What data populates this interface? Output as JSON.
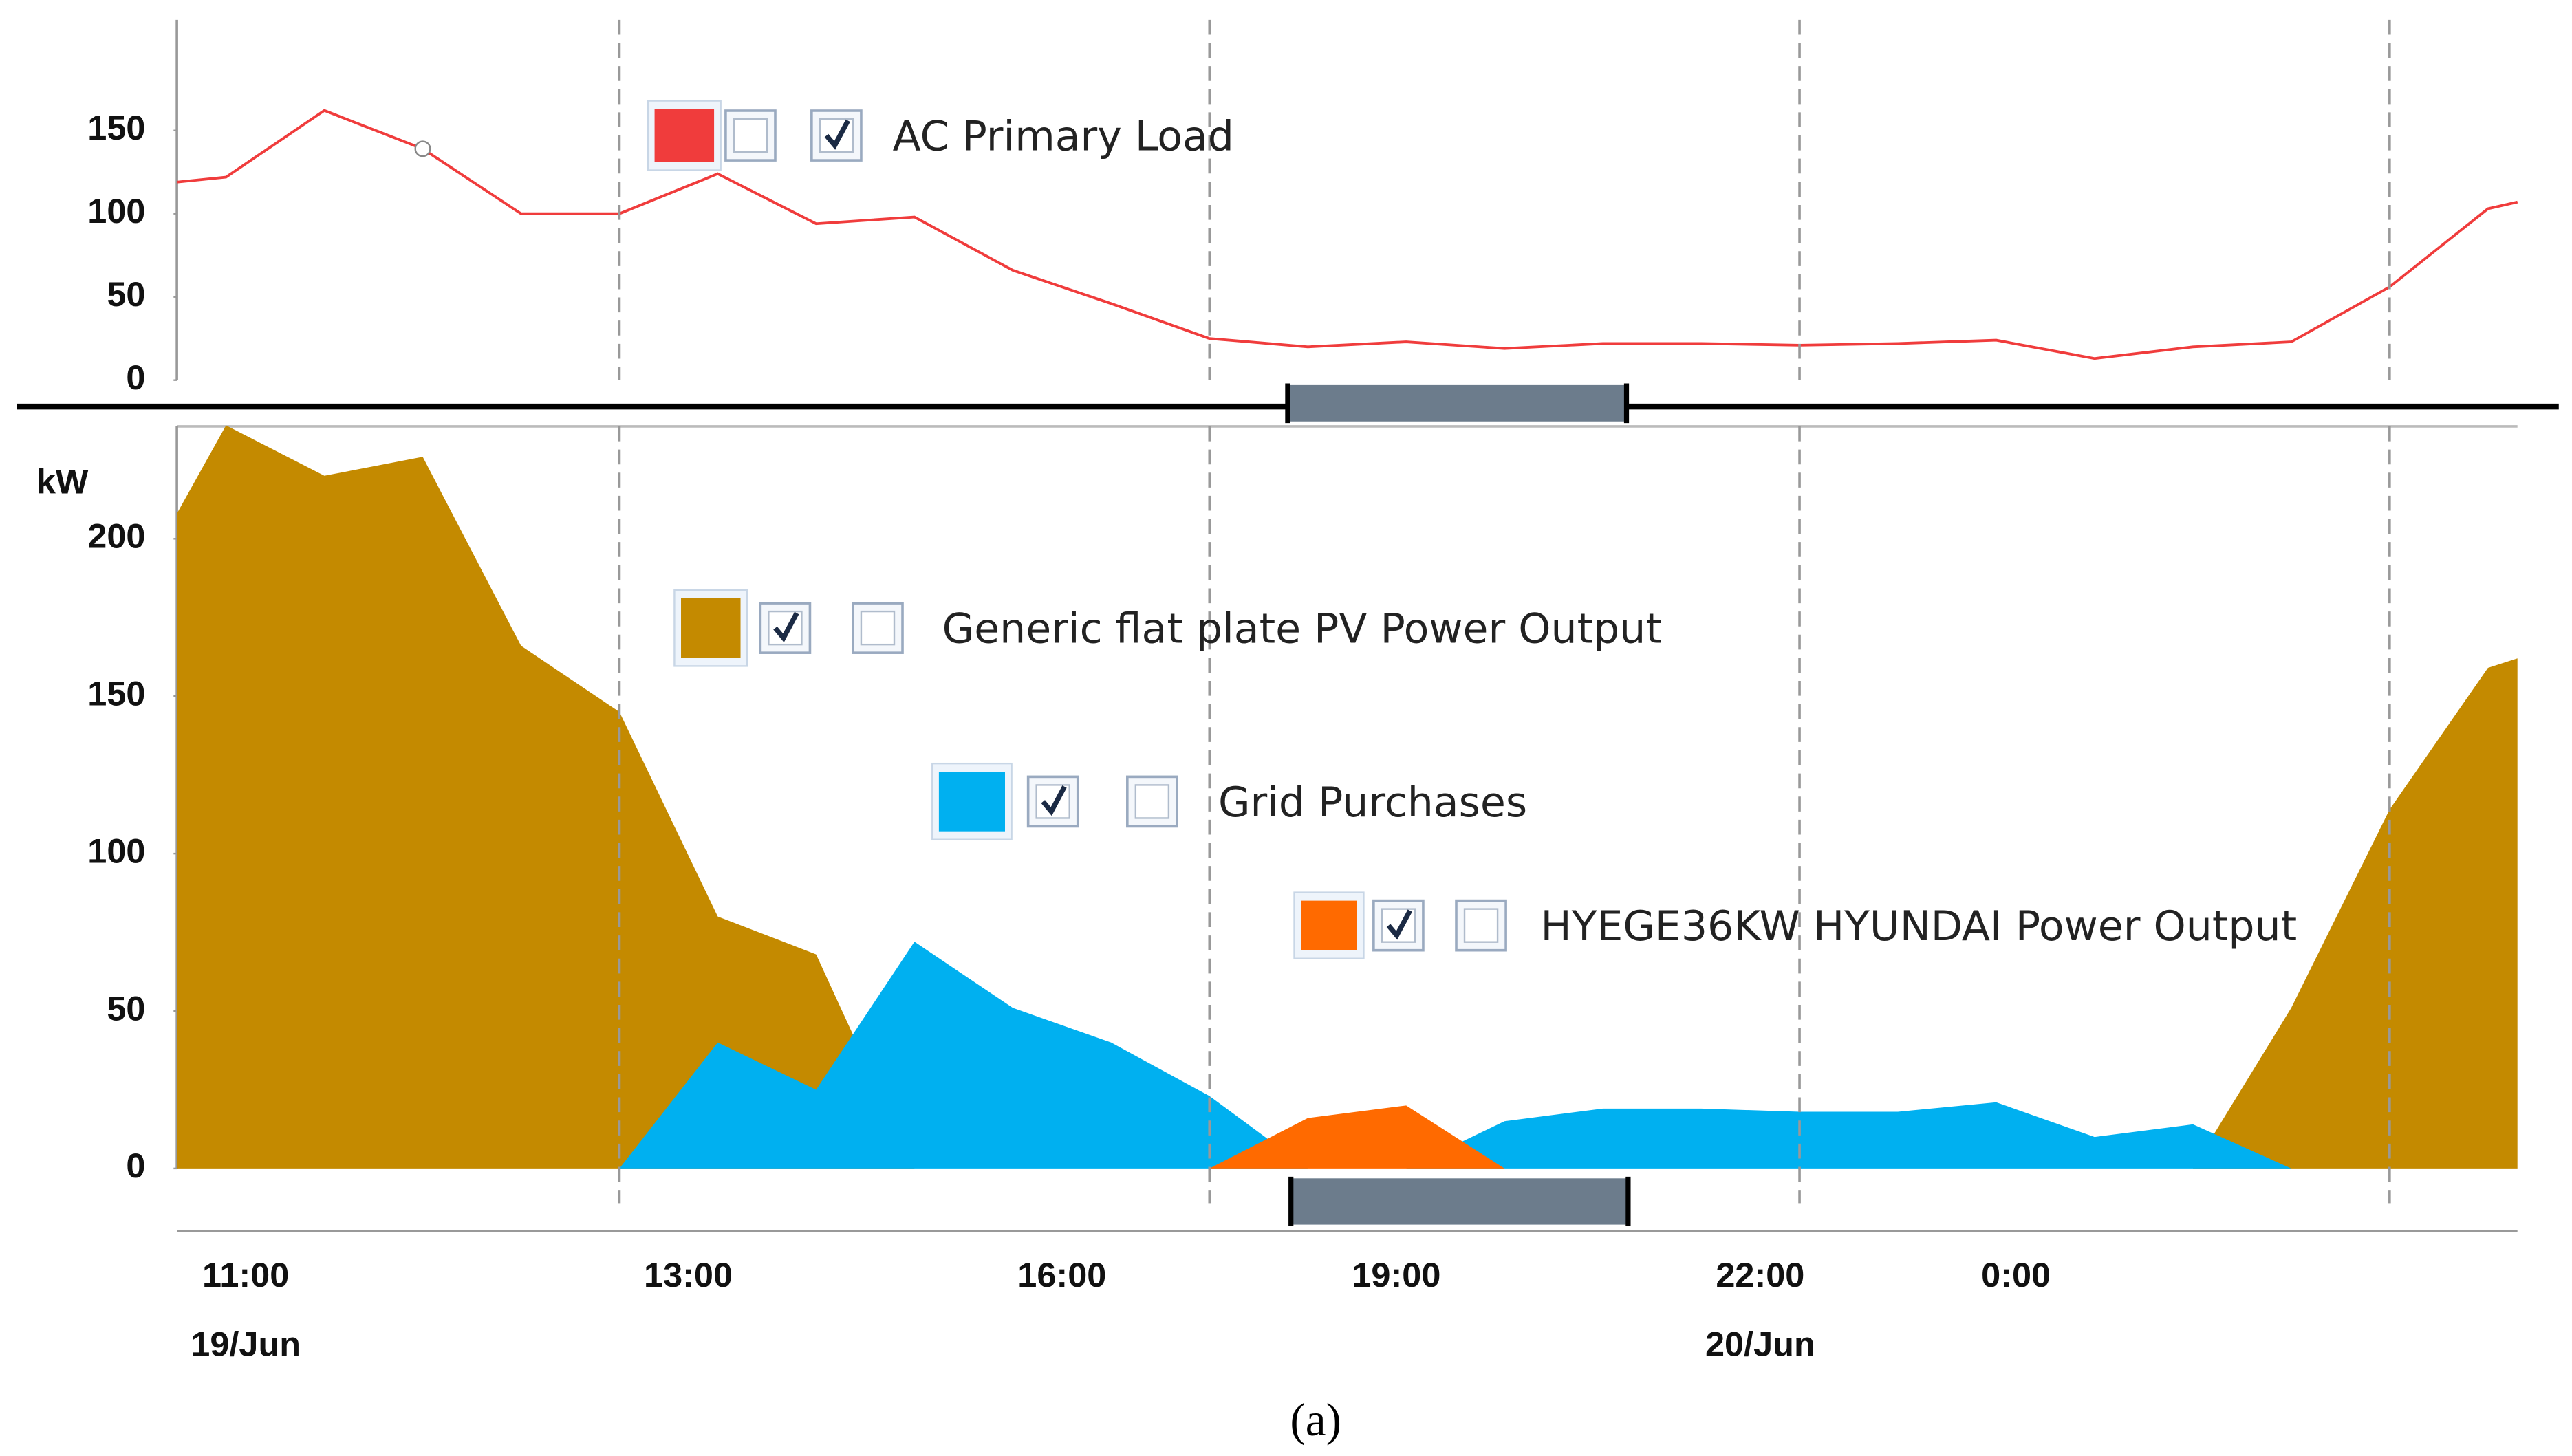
{
  "caption": "(a)",
  "chart_data": [
    {
      "type": "line",
      "x": [
        0.5,
        1,
        2,
        3,
        4,
        5,
        6,
        7,
        8,
        9,
        10,
        11,
        12,
        13,
        14,
        15,
        16,
        17,
        18,
        19,
        20,
        21,
        22,
        23,
        24,
        24.3
      ],
      "series": [
        {
          "name": "AC Primary Load",
          "color": "#f03c3c",
          "values": [
            119,
            122,
            162,
            139,
            100,
            100,
            124,
            94,
            98,
            66,
            46,
            25,
            20,
            23,
            19,
            22,
            22,
            21,
            22,
            24,
            13,
            20,
            23,
            56,
            103,
            107
          ]
        }
      ],
      "highlight_point": 3,
      "xlim": [
        0.5,
        24.3
      ],
      "ylim": [
        0,
        216
      ],
      "yticks": [
        0,
        50,
        100,
        150
      ],
      "vlines": [
        5,
        11,
        17,
        23
      ]
    },
    {
      "type": "area",
      "ylabel": "kW",
      "x": [
        0.5,
        1,
        2,
        3,
        4,
        5,
        6,
        7,
        8,
        9,
        10,
        11,
        12,
        13,
        14,
        15,
        16,
        17,
        18,
        19,
        20,
        21,
        22,
        23,
        24,
        24.3
      ],
      "series": [
        {
          "name": "Generic flat plate PV Power Output",
          "color": "#c48a00",
          "values": [
            208,
            236,
            220,
            226,
            166,
            145,
            80,
            68,
            0,
            0,
            0,
            0,
            0,
            0,
            0,
            0,
            0,
            0,
            0,
            0,
            0,
            0,
            51,
            114,
            159,
            162
          ]
        },
        {
          "name": "Grid Purchases",
          "color": "#00b0f0",
          "values": [
            null,
            null,
            null,
            null,
            null,
            0,
            40,
            25,
            72,
            51,
            40,
            23,
            0,
            0,
            15,
            19,
            19,
            18,
            18,
            21,
            10,
            14,
            0,
            null,
            null,
            null
          ]
        },
        {
          "name": "HYEGE36KW HYUNDAI Power Output",
          "color": "#ff6a00",
          "values": [
            null,
            null,
            null,
            null,
            null,
            null,
            null,
            null,
            null,
            null,
            null,
            0,
            16,
            20,
            0,
            null,
            null,
            null,
            null,
            null,
            null,
            null,
            null,
            null,
            null,
            null
          ]
        }
      ],
      "xlim": [
        0.5,
        24.3
      ],
      "ylim": [
        0,
        236
      ],
      "yticks": [
        0,
        50,
        100,
        150,
        200
      ],
      "xticks": [
        {
          "value": 1.2,
          "label": "11:00"
        },
        {
          "value": 5.7,
          "label": "13:00"
        },
        {
          "value": 9.5,
          "label": "16:00"
        },
        {
          "value": 12.9,
          "label": "19:00"
        },
        {
          "value": 16.6,
          "label": "22:00"
        },
        {
          "value": 19.2,
          "label": "0:00"
        }
      ],
      "xtick_dates": [
        {
          "value": 1.2,
          "label": "19/Jun"
        },
        {
          "value": 16.6,
          "label": "20/Jun"
        }
      ],
      "vlines": [
        5,
        11,
        17,
        23
      ]
    }
  ]
}
